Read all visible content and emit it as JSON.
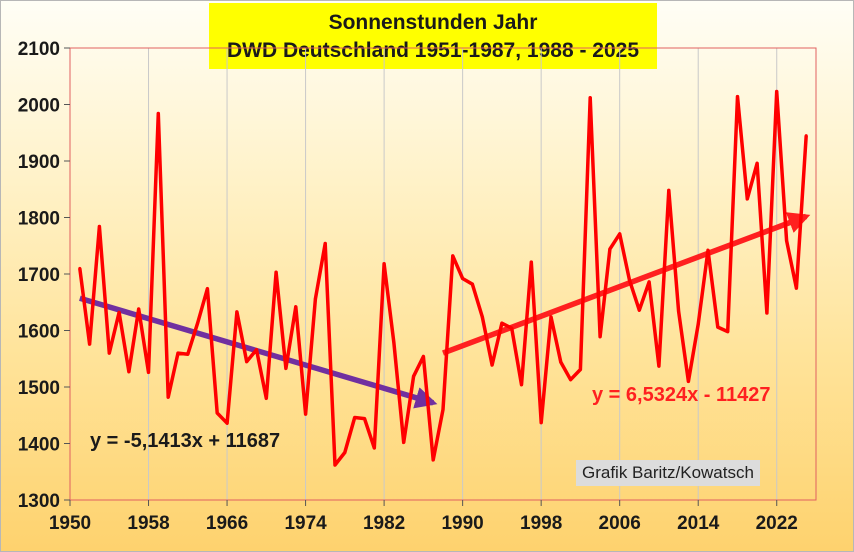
{
  "chart_data": {
    "type": "line",
    "title": "Sonnenstunden Jahr",
    "subtitle": "DWD Deutschland 1951-1987, 1988 - 2025",
    "xlabel": "",
    "ylabel": "",
    "xlim": [
      1950,
      2026
    ],
    "ylim": [
      1300,
      2100
    ],
    "xticks": [
      1950,
      1958,
      1966,
      1974,
      1982,
      1990,
      1998,
      2006,
      2014,
      2022
    ],
    "yticks": [
      1300,
      1400,
      1500,
      1600,
      1700,
      1800,
      1900,
      2000,
      2100
    ],
    "grid": {
      "vertical": true,
      "horizontal": false
    },
    "series": [
      {
        "color": "#ff0000",
        "x": [
          1951,
          1952,
          1953,
          1954,
          1955,
          1956,
          1957,
          1958,
          1959,
          1960,
          1961,
          1962,
          1963,
          1964,
          1965,
          1966,
          1967,
          1968,
          1969,
          1970,
          1971,
          1972,
          1973,
          1974,
          1975,
          1976,
          1977,
          1978,
          1979,
          1980,
          1981,
          1982,
          1983,
          1984,
          1985,
          1986,
          1987,
          1988,
          1989,
          1990,
          1991,
          1992,
          1993,
          1994,
          1995,
          1996,
          1997,
          1998,
          1999,
          2000,
          2001,
          2002,
          2003,
          2004,
          2005,
          2006,
          2007,
          2008,
          2009,
          2010,
          2011,
          2012,
          2013,
          2014,
          2015,
          2016,
          2017,
          2018,
          2019,
          2020,
          2021,
          2022,
          2023,
          2024,
          2025
        ],
        "y": [
          1710,
          1576,
          1784,
          1560,
          1632,
          1527,
          1638,
          1526,
          1984,
          1482,
          1560,
          1558,
          1613,
          1674,
          1454,
          1436,
          1633,
          1545,
          1566,
          1480,
          1703,
          1533,
          1642,
          1452,
          1656,
          1754,
          1362,
          1384,
          1446,
          1444,
          1392,
          1718,
          1578,
          1402,
          1519,
          1554,
          1371,
          1460,
          1732,
          1692,
          1682,
          1624,
          1539,
          1613,
          1604,
          1504,
          1721,
          1437,
          1624,
          1544,
          1513,
          1531,
          2012,
          1589,
          1744,
          1771,
          1689,
          1636,
          1686,
          1537,
          1848,
          1634,
          1510,
          1611,
          1742,
          1606,
          1598,
          2014,
          1833,
          1896,
          1631,
          2023,
          1759,
          1675,
          1945
        ]
      }
    ],
    "trend_lines": [
      {
        "label": "y = -5,1413x + 11687",
        "color": "#7030a0",
        "from": [
          1951,
          1657
        ],
        "to": [
          1987,
          1472
        ]
      },
      {
        "label": "y = 6,5324x - 11427",
        "color": "#ff2020",
        "from": [
          1988,
          1560
        ],
        "to": [
          2025,
          1802
        ]
      }
    ],
    "annotations": [
      "Grafik Baritz/Kowatsch"
    ]
  }
}
